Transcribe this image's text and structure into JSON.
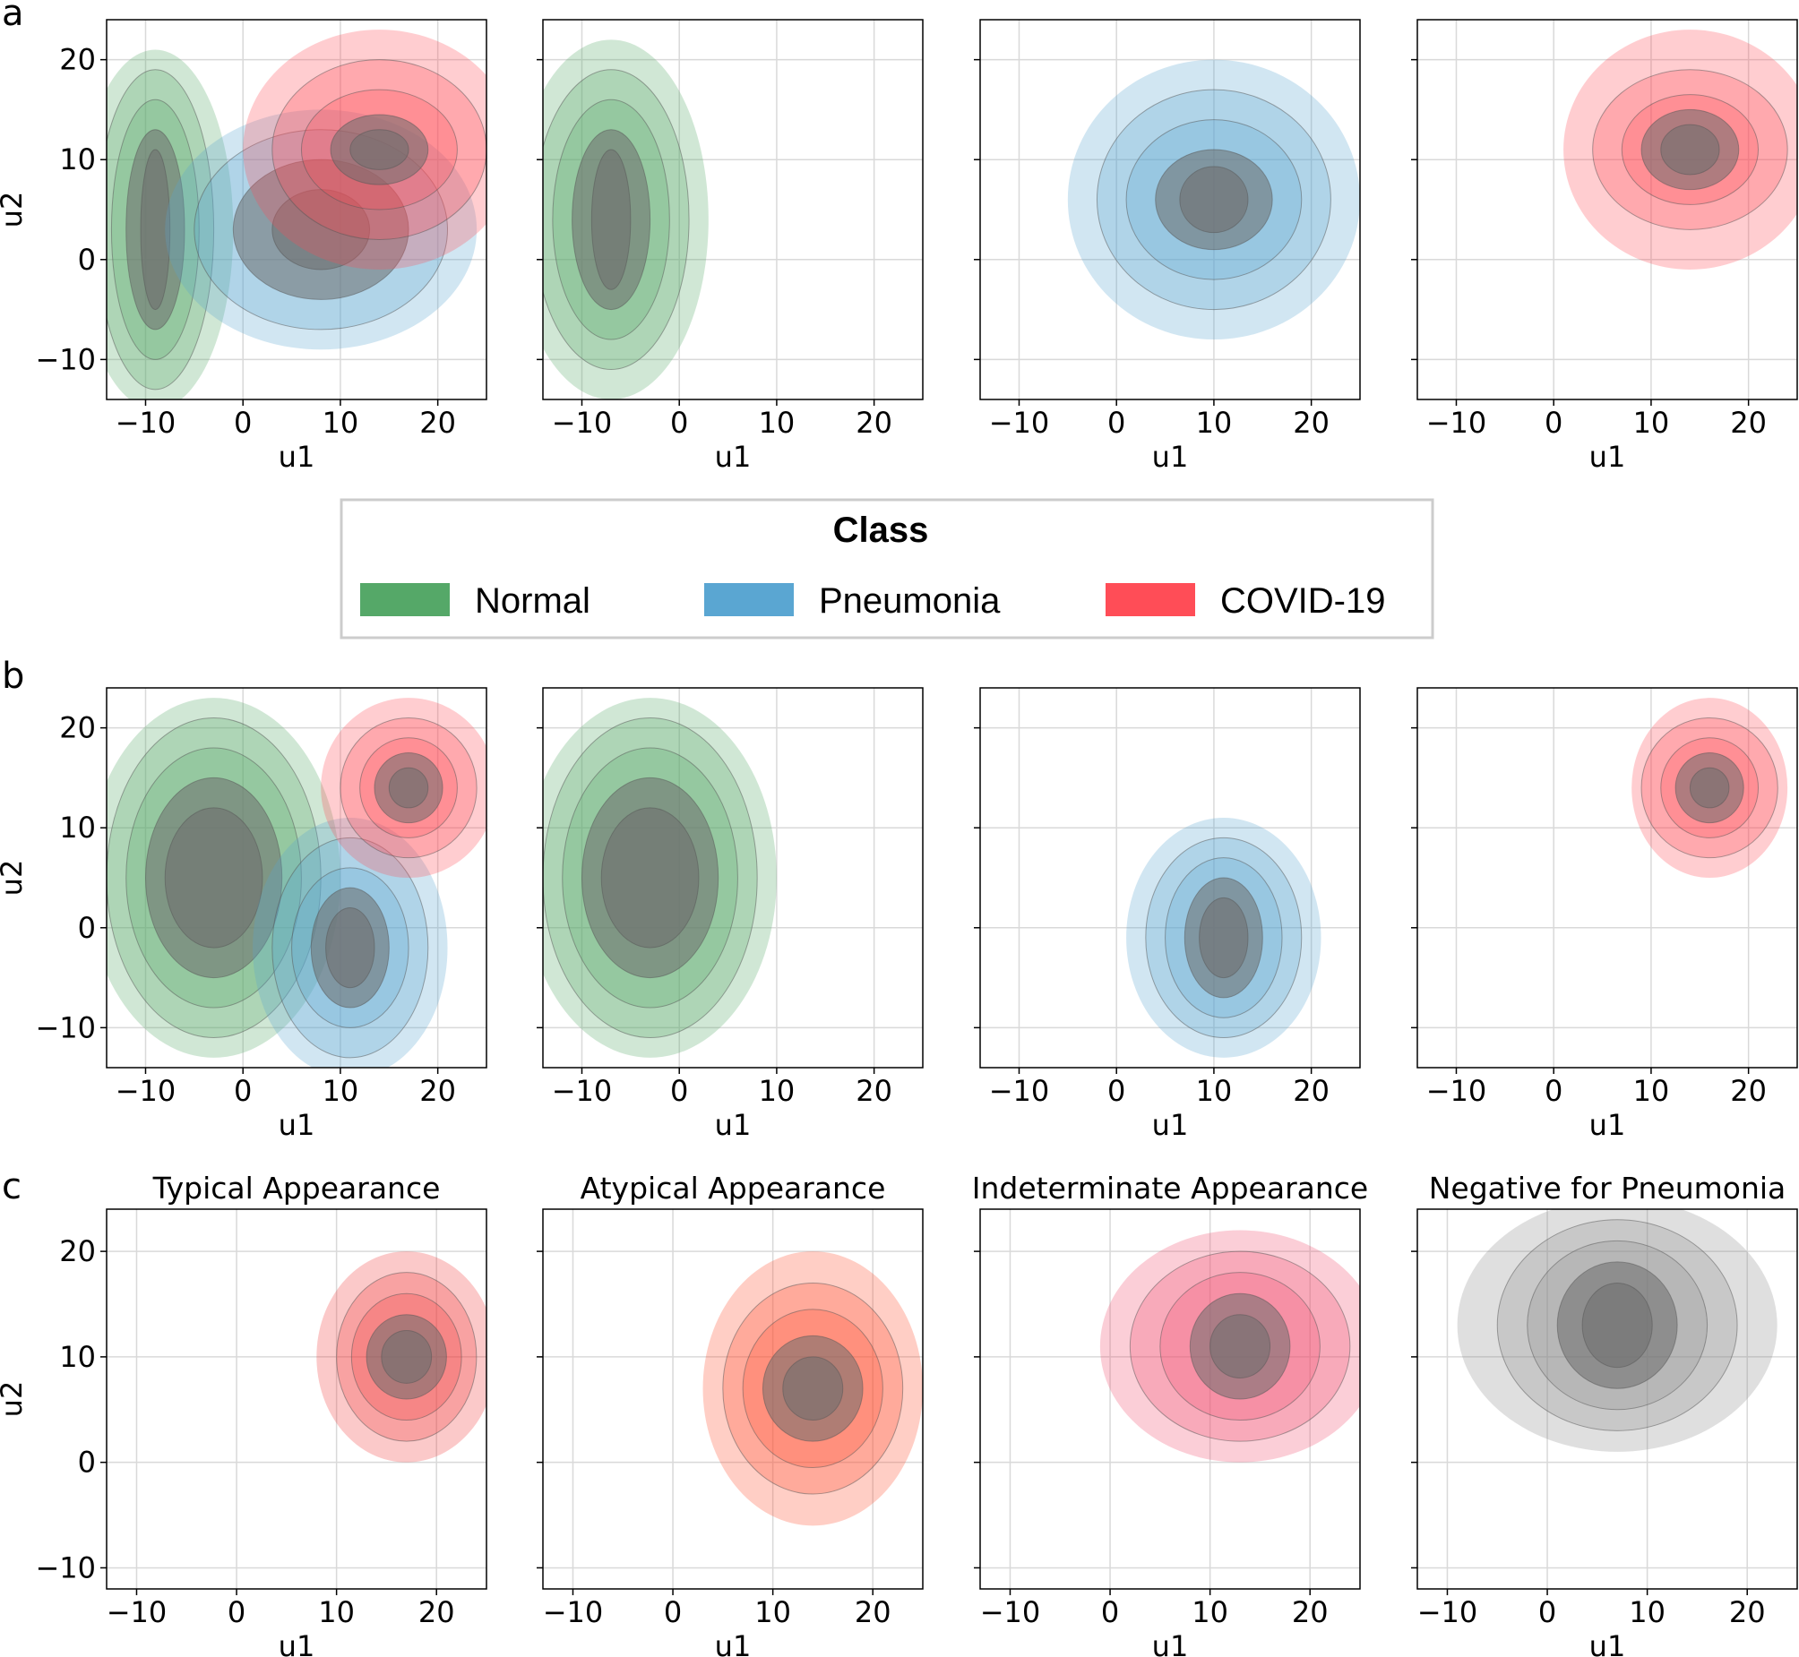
{
  "figure": {
    "panel_letters": [
      "a",
      "b",
      "c"
    ],
    "legend": {
      "title": "Class",
      "entries": [
        {
          "label": "Normal",
          "color": "#55a868"
        },
        {
          "label": "Pneumonia",
          "color": "#5aa6d2"
        },
        {
          "label": "COVID-19",
          "color": "#ff4d57"
        }
      ]
    }
  },
  "chart_data": [
    {
      "type": "kde_contour",
      "row": "a",
      "xlabel": "u1",
      "ylabel": "u2",
      "xlim": [
        -14,
        25
      ],
      "ylim": [
        -14,
        24
      ],
      "xticks": [
        -10,
        0,
        10,
        20
      ],
      "yticks": [
        -10,
        0,
        10,
        20
      ],
      "panels": [
        {
          "title": "",
          "series": [
            {
              "name": "Normal",
              "color": "#55a868",
              "center": [
                -9,
                3
              ],
              "levels": [
                [
                  8,
                  18
                ],
                [
                  6,
                  16
                ],
                [
                  4.5,
                  13
                ],
                [
                  3,
                  10
                ],
                [
                  1.5,
                  8
                ]
              ]
            },
            {
              "name": "Pneumonia",
              "color": "#5aa6d2",
              "center": [
                8,
                3
              ],
              "levels": [
                [
                  16,
                  12
                ],
                [
                  13,
                  10
                ],
                [
                  9,
                  7
                ],
                [
                  5,
                  4
                ]
              ]
            },
            {
              "name": "COVID-19",
              "color": "#ff4d57",
              "center": [
                14,
                11
              ],
              "levels": [
                [
                  14,
                  12
                ],
                [
                  11,
                  9
                ],
                [
                  8,
                  6
                ],
                [
                  5,
                  3.5
                ],
                [
                  3,
                  2
                ]
              ]
            }
          ]
        },
        {
          "title": "",
          "series": [
            {
              "name": "Normal",
              "color": "#55a868",
              "center": [
                -7,
                4
              ],
              "levels": [
                [
                  10,
                  18
                ],
                [
                  8,
                  15
                ],
                [
                  6,
                  12
                ],
                [
                  4,
                  9
                ],
                [
                  2,
                  7
                ]
              ]
            }
          ]
        },
        {
          "title": "",
          "series": [
            {
              "name": "Pneumonia",
              "color": "#5aa6d2",
              "center": [
                10,
                6
              ],
              "levels": [
                [
                  15,
                  14
                ],
                [
                  12,
                  11
                ],
                [
                  9,
                  8
                ],
                [
                  6,
                  5
                ],
                [
                  3.5,
                  3.3
                ]
              ]
            }
          ]
        },
        {
          "title": "",
          "series": [
            {
              "name": "COVID-19",
              "color": "#ff4d57",
              "center": [
                14,
                11
              ],
              "levels": [
                [
                  13,
                  12
                ],
                [
                  10,
                  8
                ],
                [
                  7,
                  5.5
                ],
                [
                  5,
                  4
                ],
                [
                  3,
                  2.5
                ]
              ]
            }
          ]
        }
      ]
    },
    {
      "type": "kde_contour",
      "row": "b",
      "xlabel": "u1",
      "ylabel": "u2",
      "xlim": [
        -14,
        25
      ],
      "ylim": [
        -14,
        24
      ],
      "xticks": [
        -10,
        0,
        10,
        20
      ],
      "yticks": [
        -10,
        0,
        10,
        20
      ],
      "panels": [
        {
          "title": "",
          "series": [
            {
              "name": "Normal",
              "color": "#55a868",
              "center": [
                -3,
                5
              ],
              "levels": [
                [
                  13,
                  18
                ],
                [
                  11,
                  16
                ],
                [
                  9,
                  13
                ],
                [
                  7,
                  10
                ],
                [
                  5,
                  7
                ]
              ]
            },
            {
              "name": "Pneumonia",
              "color": "#5aa6d2",
              "center": [
                11,
                -2
              ],
              "levels": [
                [
                  10,
                  13
                ],
                [
                  8,
                  11
                ],
                [
                  6,
                  8
                ],
                [
                  4,
                  6
                ],
                [
                  2.5,
                  4
                ]
              ]
            },
            {
              "name": "COVID-19",
              "color": "#ff4d57",
              "center": [
                17,
                14
              ],
              "levels": [
                [
                  9,
                  9
                ],
                [
                  7,
                  7
                ],
                [
                  5,
                  5
                ],
                [
                  3.5,
                  3.5
                ],
                [
                  2,
                  2
                ]
              ]
            }
          ]
        },
        {
          "title": "",
          "series": [
            {
              "name": "Normal",
              "color": "#55a868",
              "center": [
                -3,
                5
              ],
              "levels": [
                [
                  13,
                  18
                ],
                [
                  11,
                  16
                ],
                [
                  9,
                  13
                ],
                [
                  7,
                  10
                ],
                [
                  5,
                  7
                ]
              ]
            }
          ]
        },
        {
          "title": "",
          "series": [
            {
              "name": "Pneumonia",
              "color": "#5aa6d2",
              "center": [
                11,
                -1
              ],
              "levels": [
                [
                  10,
                  12
                ],
                [
                  8,
                  10
                ],
                [
                  6,
                  8
                ],
                [
                  4,
                  6
                ],
                [
                  2.5,
                  4
                ]
              ]
            }
          ]
        },
        {
          "title": "",
          "series": [
            {
              "name": "COVID-19",
              "color": "#ff4d57",
              "center": [
                16,
                14
              ],
              "levels": [
                [
                  8,
                  9
                ],
                [
                  7,
                  7
                ],
                [
                  5,
                  5
                ],
                [
                  3.5,
                  3.5
                ],
                [
                  2,
                  2
                ]
              ]
            }
          ]
        }
      ]
    },
    {
      "type": "kde_contour",
      "row": "c",
      "xlabel": "u1",
      "ylabel": "u2",
      "xlim": [
        -13,
        25
      ],
      "ylim": [
        -12,
        24
      ],
      "xticks": [
        -10,
        0,
        10,
        20
      ],
      "yticks": [
        -10,
        0,
        10,
        20
      ],
      "panels": [
        {
          "title": "Typical Appearance",
          "series": [
            {
              "name": "Typical",
              "color": "#f03c3c",
              "center": [
                17,
                10
              ],
              "levels": [
                [
                  9,
                  10
                ],
                [
                  7,
                  8
                ],
                [
                  5.5,
                  6
                ],
                [
                  4,
                  4
                ],
                [
                  2.5,
                  2.5
                ]
              ]
            }
          ]
        },
        {
          "title": "Atypical Appearance",
          "series": [
            {
              "name": "Atypical",
              "color": "#ff5030",
              "center": [
                14,
                7
              ],
              "levels": [
                [
                  11,
                  13
                ],
                [
                  9,
                  10
                ],
                [
                  7,
                  7.5
                ],
                [
                  5,
                  5
                ],
                [
                  3,
                  3
                ]
              ]
            }
          ]
        },
        {
          "title": "Indeterminate Appearance",
          "series": [
            {
              "name": "Indeterminate",
              "color": "#f0506e",
              "center": [
                13,
                11
              ],
              "levels": [
                [
                  14,
                  11
                ],
                [
                  11,
                  9
                ],
                [
                  8,
                  7
                ],
                [
                  5,
                  5
                ],
                [
                  3,
                  3
                ]
              ]
            }
          ]
        },
        {
          "title": "Negative for Pneumonia",
          "series": [
            {
              "name": "Negative",
              "color": "#8c8c8c",
              "center": [
                7,
                13
              ],
              "levels": [
                [
                  16,
                  12
                ],
                [
                  12,
                  10
                ],
                [
                  9,
                  8
                ],
                [
                  6,
                  6
                ],
                [
                  3.5,
                  4
                ]
              ]
            }
          ]
        }
      ]
    }
  ]
}
